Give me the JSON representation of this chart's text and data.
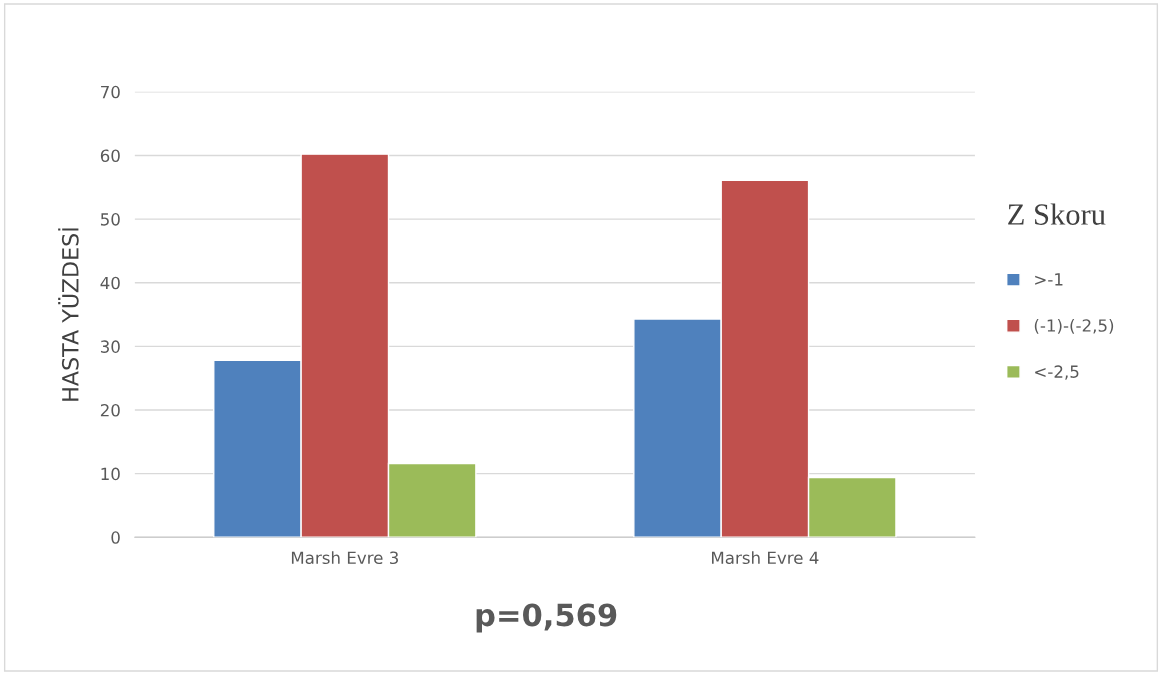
{
  "chart_data": {
    "type": "bar",
    "ylabel": "HASTA YÜZDESİ",
    "legend_title": "Z Skoru",
    "categories": [
      "Marsh Evre 3",
      "Marsh Evre 4"
    ],
    "series": [
      {
        "name": ">-1",
        "color": "#4f81bd",
        "values": [
          27.8,
          34.3
        ]
      },
      {
        "name": "(-1)-(-2,5)",
        "color": "#c0504d",
        "values": [
          60.2,
          56.1
        ]
      },
      {
        "name": "<-2,5",
        "color": "#9bbb59",
        "values": [
          11.6,
          9.4
        ]
      }
    ],
    "ylim": [
      0,
      70
    ],
    "yticks": [
      0,
      10,
      20,
      30,
      40,
      50,
      60,
      70
    ],
    "grid": "y",
    "legend": "right",
    "annotations": [
      "p=0,569"
    ]
  }
}
